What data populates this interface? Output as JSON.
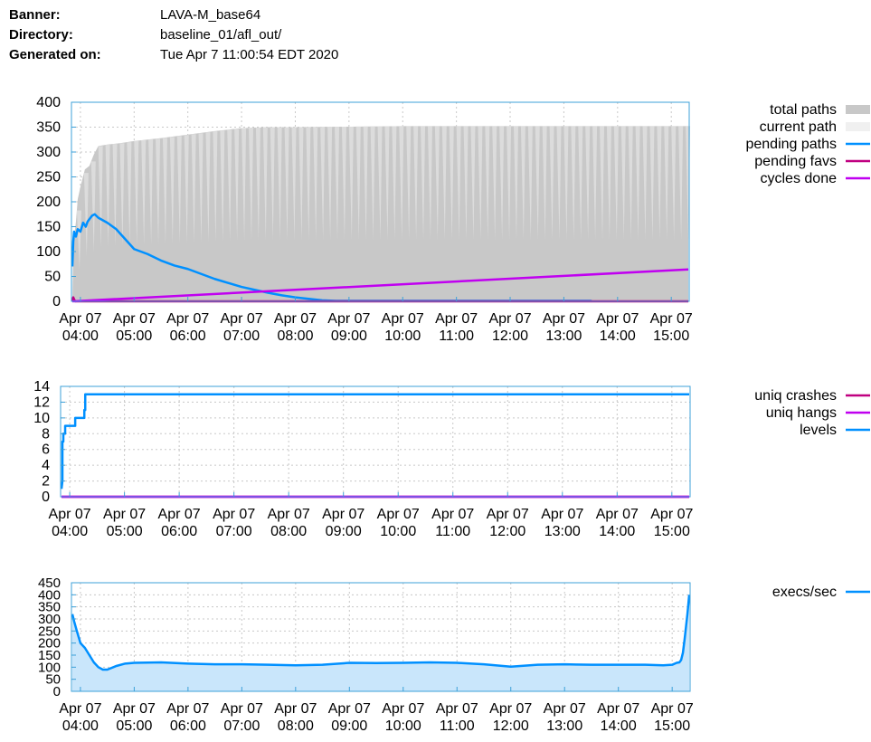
{
  "header": {
    "banner_label": "Banner:",
    "banner_value": "LAVA-M_base64",
    "directory_label": "Directory:",
    "directory_value": "baseline_01/afl_out/",
    "generated_label": "Generated on:",
    "generated_value": "Tue Apr 7 11:00:54 EDT 2020"
  },
  "colors": {
    "total_paths": "#c8c8c8",
    "current_path": "#f0f0f0",
    "pending_paths": "#0090ff",
    "pending_favs": "#c00080",
    "cycles_done": "#c000f0",
    "uniq_crashes": "#c00080",
    "uniq_hangs": "#c000f0",
    "levels": "#0090ff",
    "execs": "#0090ff",
    "execs_fill": "#c9e6fb",
    "frame": "#3ca0d8",
    "grid": "#c8c8c8"
  },
  "chart_data": [
    {
      "type": "area",
      "x_unit": "time",
      "x_range": [
        "Apr 07 03:50",
        "Apr 07 15:20"
      ],
      "x_tick_labels": [
        [
          "Apr 07",
          "04:00"
        ],
        [
          "Apr 07",
          "05:00"
        ],
        [
          "Apr 07",
          "06:00"
        ],
        [
          "Apr 07",
          "07:00"
        ],
        [
          "Apr 07",
          "08:00"
        ],
        [
          "Apr 07",
          "09:00"
        ],
        [
          "Apr 07",
          "10:00"
        ],
        [
          "Apr 07",
          "11:00"
        ],
        [
          "Apr 07",
          "12:00"
        ],
        [
          "Apr 07",
          "13:00"
        ],
        [
          "Apr 07",
          "14:00"
        ],
        [
          "Apr 07",
          "15:00"
        ]
      ],
      "x_ticks": [
        "04:00",
        "05:00",
        "06:00",
        "07:00",
        "08:00",
        "09:00",
        "10:00",
        "11:00",
        "12:00",
        "13:00",
        "14:00",
        "15:00"
      ],
      "ylim": [
        0,
        400
      ],
      "y_ticks": [
        "0",
        "50",
        "100",
        "150",
        "200",
        "250",
        "300",
        "350",
        "400"
      ],
      "grid": true,
      "legend_position": "right",
      "legend": [
        "total paths",
        "current path",
        "pending paths",
        "pending favs",
        "cycles done"
      ],
      "series": [
        {
          "name": "total paths",
          "style": "area",
          "x": [
            "03:51",
            "03:52",
            "03:55",
            "03:57",
            "04:00",
            "04:05",
            "04:10",
            "04:15",
            "04:20",
            "04:30",
            "04:45",
            "05:00",
            "05:30",
            "06:00",
            "06:30",
            "07:00",
            "07:30",
            "08:00",
            "09:00",
            "10:00",
            "11:00",
            "12:00",
            "13:00",
            "14:00",
            "15:00",
            "15:19"
          ],
          "values": [
            0,
            110,
            160,
            205,
            230,
            265,
            272,
            295,
            312,
            315,
            318,
            322,
            328,
            335,
            342,
            348,
            350,
            350,
            351,
            352,
            352,
            352,
            352,
            352,
            352,
            352
          ]
        },
        {
          "name": "current path",
          "style": "area",
          "x": [
            "03:51",
            "15:19"
          ],
          "values": [
            0,
            0
          ]
        },
        {
          "name": "pending paths",
          "style": "line",
          "x": [
            "03:51",
            "03:52",
            "03:53",
            "03:55",
            "03:57",
            "04:00",
            "04:03",
            "04:06",
            "04:08",
            "04:10",
            "04:13",
            "04:16",
            "04:20",
            "04:25",
            "04:30",
            "04:40",
            "04:50",
            "05:00",
            "05:15",
            "05:30",
            "05:45",
            "06:00",
            "06:15",
            "06:30",
            "06:45",
            "07:00",
            "07:15",
            "07:30",
            "07:45",
            "08:00",
            "08:15",
            "08:30",
            "08:45",
            "09:00",
            "09:30",
            "10:00",
            "11:00",
            "12:00",
            "13:00",
            "13:30",
            "13:31"
          ],
          "values": [
            70,
            120,
            140,
            130,
            145,
            140,
            158,
            150,
            160,
            165,
            172,
            175,
            168,
            163,
            158,
            145,
            125,
            105,
            95,
            82,
            72,
            65,
            55,
            45,
            37,
            29,
            23,
            17,
            12,
            8,
            5,
            2,
            1,
            1,
            1,
            1,
            1,
            1,
            1,
            1,
            0
          ]
        },
        {
          "name": "pending favs",
          "style": "line",
          "x": [
            "03:51",
            "03:52",
            "03:54",
            "04:00",
            "15:19"
          ],
          "values": [
            0,
            8,
            0,
            0,
            0
          ]
        },
        {
          "name": "cycles done",
          "style": "line",
          "x": [
            "03:51",
            "15:19"
          ],
          "values": [
            0,
            64
          ]
        }
      ]
    },
    {
      "type": "line",
      "x_unit": "time",
      "x_range": [
        "Apr 07 03:50",
        "Apr 07 15:20"
      ],
      "x_tick_labels": [
        [
          "Apr 07",
          "04:00"
        ],
        [
          "Apr 07",
          "05:00"
        ],
        [
          "Apr 07",
          "06:00"
        ],
        [
          "Apr 07",
          "07:00"
        ],
        [
          "Apr 07",
          "08:00"
        ],
        [
          "Apr 07",
          "09:00"
        ],
        [
          "Apr 07",
          "10:00"
        ],
        [
          "Apr 07",
          "11:00"
        ],
        [
          "Apr 07",
          "12:00"
        ],
        [
          "Apr 07",
          "13:00"
        ],
        [
          "Apr 07",
          "14:00"
        ],
        [
          "Apr 07",
          "15:00"
        ]
      ],
      "x_ticks": [
        "04:00",
        "05:00",
        "06:00",
        "07:00",
        "08:00",
        "09:00",
        "10:00",
        "11:00",
        "12:00",
        "13:00",
        "14:00",
        "15:00"
      ],
      "ylim": [
        0,
        14
      ],
      "y_ticks": [
        "0",
        "2",
        "4",
        "6",
        "8",
        "10",
        "12",
        "14"
      ],
      "grid": true,
      "legend_position": "right",
      "legend": [
        "uniq crashes",
        "uniq hangs",
        "levels"
      ],
      "series": [
        {
          "name": "uniq crashes",
          "x": [
            "03:51",
            "15:19"
          ],
          "values": [
            0,
            0
          ]
        },
        {
          "name": "uniq hangs",
          "x": [
            "03:51",
            "15:19"
          ],
          "values": [
            0,
            0
          ]
        },
        {
          "name": "levels",
          "x": [
            "03:51",
            "03:52",
            "03:52",
            "03:53",
            "03:53",
            "03:55",
            "03:55",
            "04:06",
            "04:06",
            "04:16",
            "04:16",
            "04:17",
            "04:17",
            "15:19"
          ],
          "values": [
            1,
            2,
            7,
            7,
            8,
            8,
            9,
            9,
            10,
            10,
            11,
            11,
            13,
            13
          ]
        }
      ]
    },
    {
      "type": "area",
      "x_unit": "time",
      "x_range": [
        "Apr 07 03:50",
        "Apr 07 15:20"
      ],
      "x_tick_labels": [
        [
          "Apr 07",
          "04:00"
        ],
        [
          "Apr 07",
          "05:00"
        ],
        [
          "Apr 07",
          "06:00"
        ],
        [
          "Apr 07",
          "07:00"
        ],
        [
          "Apr 07",
          "08:00"
        ],
        [
          "Apr 07",
          "09:00"
        ],
        [
          "Apr 07",
          "10:00"
        ],
        [
          "Apr 07",
          "11:00"
        ],
        [
          "Apr 07",
          "12:00"
        ],
        [
          "Apr 07",
          "13:00"
        ],
        [
          "Apr 07",
          "14:00"
        ],
        [
          "Apr 07",
          "15:00"
        ]
      ],
      "x_ticks": [
        "04:00",
        "05:00",
        "06:00",
        "07:00",
        "08:00",
        "09:00",
        "10:00",
        "11:00",
        "12:00",
        "13:00",
        "14:00",
        "15:00"
      ],
      "ylim": [
        0,
        450
      ],
      "y_ticks": [
        "0",
        "50",
        "100",
        "150",
        "200",
        "250",
        "300",
        "350",
        "400",
        "450"
      ],
      "grid": true,
      "legend_position": "right",
      "legend": [
        "execs/sec"
      ],
      "series": [
        {
          "name": "execs/sec",
          "x": [
            "03:51",
            "03:53",
            "03:56",
            "04:00",
            "04:05",
            "04:10",
            "04:15",
            "04:20",
            "04:25",
            "04:30",
            "04:40",
            "04:50",
            "05:00",
            "05:30",
            "06:00",
            "06:30",
            "07:00",
            "07:30",
            "08:00",
            "08:30",
            "09:00",
            "09:30",
            "10:00",
            "10:30",
            "11:00",
            "11:30",
            "12:00",
            "12:30",
            "13:00",
            "13:30",
            "14:00",
            "14:30",
            "14:50",
            "15:00",
            "15:05",
            "15:08",
            "15:10",
            "15:12",
            "15:14",
            "15:17",
            "15:19"
          ],
          "values": [
            320,
            290,
            250,
            200,
            180,
            150,
            120,
            100,
            90,
            90,
            105,
            115,
            118,
            120,
            115,
            112,
            112,
            110,
            108,
            110,
            118,
            117,
            118,
            120,
            118,
            112,
            102,
            110,
            112,
            110,
            110,
            110,
            108,
            110,
            118,
            120,
            130,
            160,
            220,
            320,
            400
          ]
        }
      ]
    }
  ]
}
